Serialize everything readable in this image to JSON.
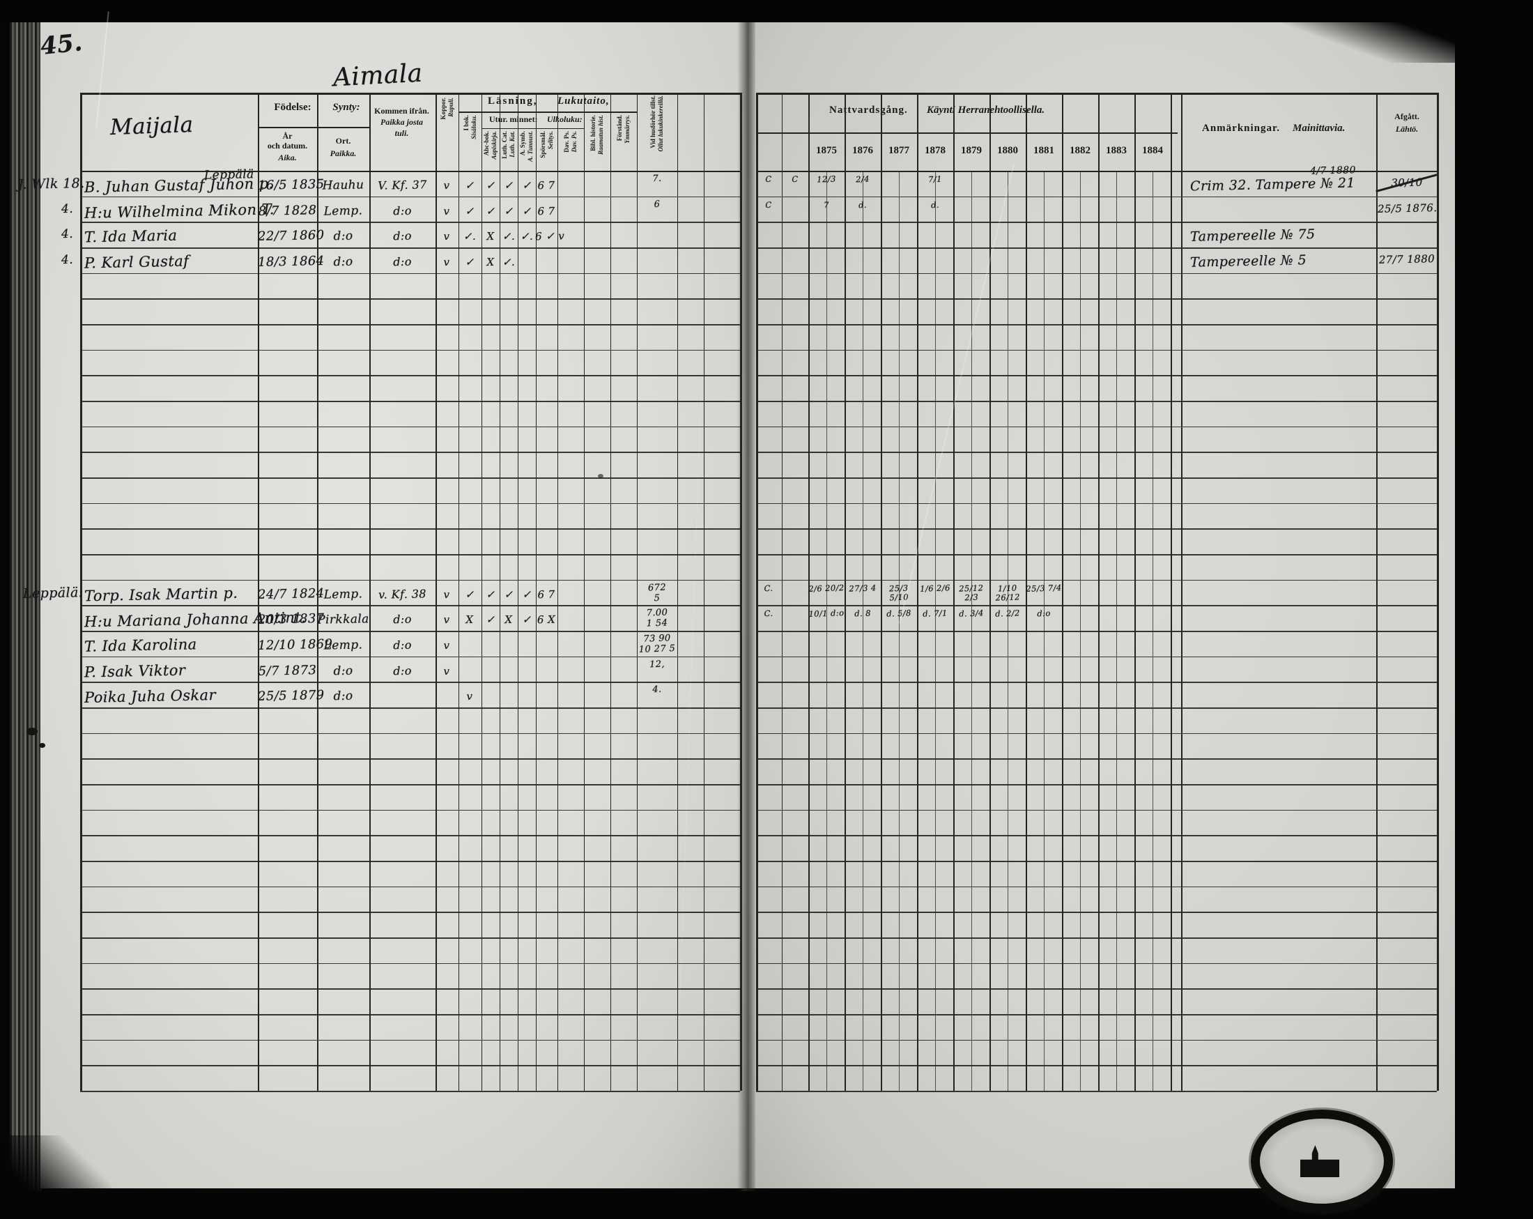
{
  "page": {
    "number": "45.",
    "village_title": "Aimala",
    "house_title": "Maijala",
    "lower_group_label": "Leppälä:"
  },
  "left_table": {
    "birth_group": {
      "sv": "Födelse:",
      "fi": "Synty:"
    },
    "date_col": {
      "l1": "År",
      "l2": "och datum.",
      "fi": "Aika."
    },
    "place_col": {
      "sv": "Ort.",
      "fi": "Paikka."
    },
    "from_col": {
      "sv": "Kommen ifrån.",
      "fi1": "Paikka josta",
      "fi2": "tuli."
    },
    "reading_group": {
      "sv": "Läsning,",
      "fi": "Lukutaito,"
    },
    "memory_group": {
      "sv": "Utur. minnet:",
      "fi": "Ulkoluku:"
    },
    "narrow_columns": [
      {
        "sv": "Koppor.",
        "fi": "Rupuli."
      },
      {
        "sv": "I bok.",
        "fi": "Sisäluku."
      },
      {
        "sv": "Abc-bok.",
        "fi": "Aapiskirja."
      },
      {
        "sv": "Luth. Cat.",
        "fi": "Luth. Kat."
      },
      {
        "sv": "A. Symb.",
        "fi": "A. Tunnust."
      },
      {
        "sv": "Spörsmål.",
        "fi": "Selitys."
      },
      {
        "sv": "Dav. Ps.",
        "fi": "Dav. Ps."
      },
      {
        "sv": "Bibl. historie.",
        "fi": "Raamatun hist."
      },
      {
        "sv": "Förstånd.",
        "fi": "Ymmärrys."
      },
      {
        "sv": "Vid husförhör tillst.",
        "fi": "Ollut lukukinkereillä."
      }
    ]
  },
  "right_table": {
    "communion_group": {
      "sv": "Nattvardsgång.",
      "fi": "Käynti Herranehtoollisella."
    },
    "years": [
      "1875",
      "1876",
      "1877",
      "1878",
      "1879",
      "1880",
      "1881",
      "1882",
      "1883",
      "1884"
    ],
    "remarks_col": {
      "sv": "Anmärkningar.",
      "fi": "Mainittavia."
    },
    "departed_col": {
      "sv": "Afgått.",
      "fi": "Lähtö."
    }
  },
  "records": {
    "upper": [
      {
        "margin": "J. Wlk 18.",
        "above": "Leppälä",
        "name": "B. Juhan Gustaf Juhon p.",
        "born": "16/5 1835",
        "place": "Hauhu",
        "from": "V. Kf. 37",
        "marks": [
          "v",
          "✓",
          "✓",
          "✓",
          "✓",
          "6 7"
        ],
        "husf": [
          "7."
        ],
        "comm": [
          "C",
          "C",
          "12/3",
          "2/4",
          "",
          "7/1",
          "",
          "",
          "",
          "",
          "",
          ""
        ],
        "anm": "Crim 32. Tampere № 21",
        "anm_sup": "4/7 1880",
        "afg": "30/10",
        "afg_struck": true
      },
      {
        "margin": "4.",
        "name": "H:u Wilhelmina Mikon T.",
        "born": "8/7 1828",
        "place": "Lemp.",
        "from": "d:o",
        "marks": [
          "v",
          "✓",
          "✓",
          "✓",
          "✓",
          "6 7"
        ],
        "husf": [
          "6"
        ],
        "comm": [
          "C",
          "",
          "7",
          "d.",
          "",
          "d.",
          "",
          "",
          "",
          "",
          "",
          ""
        ],
        "afg": "25/5 1876."
      },
      {
        "margin": "4.",
        "name": "T. Ida Maria",
        "born": "22/7 1860",
        "place": "d:o",
        "from": "d:o",
        "marks": [
          "v",
          "✓.",
          "X",
          "✓.",
          "✓.",
          "6 ✓ v"
        ],
        "anm": "Tampereelle № 75"
      },
      {
        "margin": "4.",
        "name": "P. Karl Gustaf",
        "born": "18/3 1864",
        "place": "d:o",
        "from": "d:o",
        "marks": [
          "v",
          "✓",
          "X",
          "✓.",
          "",
          ""
        ],
        "anm": "Tampereelle № 5",
        "afg": "27/7 1880"
      }
    ],
    "lower": [
      {
        "name": "Torp. Isak Martin p.",
        "born": "24/7 1824",
        "place": "Lemp.",
        "from": "v. Kf. 38",
        "marks": [
          "v",
          "✓",
          "✓",
          "✓",
          "✓",
          "6 7"
        ],
        "husf": [
          "672",
          "5"
        ],
        "comm": [
          "C.",
          "",
          "2/6 20/2",
          "27/3 4",
          "25/3 5/10",
          "1/6 2/6",
          "25/12 2/3",
          "1/10 26/12",
          "25/3 7/4",
          "",
          "",
          ""
        ]
      },
      {
        "name": "H:u Mariana Johanna Antint.",
        "born": "20/3 1837",
        "place": "Pirkkala",
        "from": "d:o",
        "marks": [
          "v",
          "X",
          "✓",
          "X",
          "✓",
          "6 X"
        ],
        "husf": [
          "7.00",
          "1 54"
        ],
        "comm": [
          "C.",
          "",
          "10/1 d:o",
          "d. 8",
          "d. 5/8",
          "d. 7/1",
          "d. 3/4",
          "d. 2/2",
          "d:o",
          "",
          "",
          ""
        ]
      },
      {
        "name": "T. Ida Karolina",
        "born": "12/10 1869",
        "place": "Lemp.",
        "from": "d:o",
        "marks": [
          "v",
          "",
          "",
          "",
          "",
          ""
        ],
        "husf": [
          "73 90",
          "10 27 5"
        ]
      },
      {
        "name": "P. Isak Viktor",
        "born": "5/7 1873",
        "place": "d:o",
        "from": "d:o",
        "marks": [
          "v",
          "",
          "",
          "",
          "",
          ""
        ],
        "husf": [
          "12,"
        ]
      },
      {
        "name": "Poika Juha Oskar",
        "born": "25/5 1879",
        "place": "d:o",
        "from": "",
        "marks": [
          "",
          "v",
          "",
          "",
          "",
          ""
        ],
        "husf": [
          "4."
        ]
      }
    ]
  }
}
